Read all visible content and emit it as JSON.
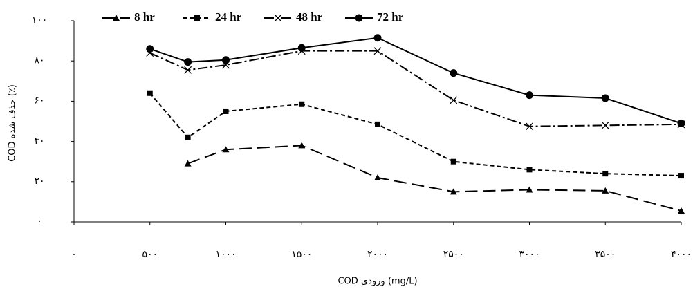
{
  "chart_data": {
    "type": "line",
    "x_label": "COD ورودی (mg/L)",
    "y_label": "COD حذف شده (٪)",
    "x": [
      500,
      750,
      1000,
      1500,
      2000,
      2500,
      3000,
      3500,
      4000
    ],
    "series": [
      {
        "name": "8 hr",
        "color": "#000000",
        "dash": "18,8",
        "marker": "triangle",
        "values": [
          null,
          29,
          36,
          38,
          22,
          15,
          16,
          15.5,
          5.5
        ]
      },
      {
        "name": "24 hr",
        "color": "#000000",
        "dash": "6,4",
        "marker": "square",
        "values": [
          64,
          42,
          55,
          58.5,
          48.5,
          30,
          26,
          24,
          23
        ]
      },
      {
        "name": "48 hr",
        "color": "#000000",
        "dash": "14,4,3,4",
        "marker": "x",
        "values": [
          84,
          75.5,
          78,
          85,
          85,
          60.5,
          47.5,
          48,
          48.5
        ]
      },
      {
        "name": "72 hr",
        "color": "#000000",
        "dash": "none",
        "marker": "circle",
        "values": [
          86,
          79.5,
          80.5,
          86.5,
          91.5,
          74,
          63,
          61.5,
          49
        ]
      }
    ],
    "xlim": [
      0,
      4000
    ],
    "xticks": [
      {
        "value": 0,
        "label": "۰"
      },
      {
        "value": 500,
        "label": "۵۰۰"
      },
      {
        "value": 1000,
        "label": "۱۰۰۰"
      },
      {
        "value": 1500,
        "label": "۱۵۰۰"
      },
      {
        "value": 2000,
        "label": "۲۰۰۰"
      },
      {
        "value": 2500,
        "label": "۲۵۰۰"
      },
      {
        "value": 3000,
        "label": "۳۰۰۰"
      },
      {
        "value": 3500,
        "label": "۳۵۰۰"
      },
      {
        "value": 4000,
        "label": "۴۰۰۰"
      }
    ],
    "ylim": [
      0,
      100
    ],
    "yticks": [
      {
        "value": 0,
        "label": "۰"
      },
      {
        "value": 20,
        "label": "۲۰"
      },
      {
        "value": 40,
        "label": "۴۰"
      },
      {
        "value": 60,
        "label": "۶۰"
      },
      {
        "value": 80,
        "label": "۸۰"
      },
      {
        "value": 100,
        "label": "۱۰۰"
      }
    ],
    "legend": "top"
  }
}
